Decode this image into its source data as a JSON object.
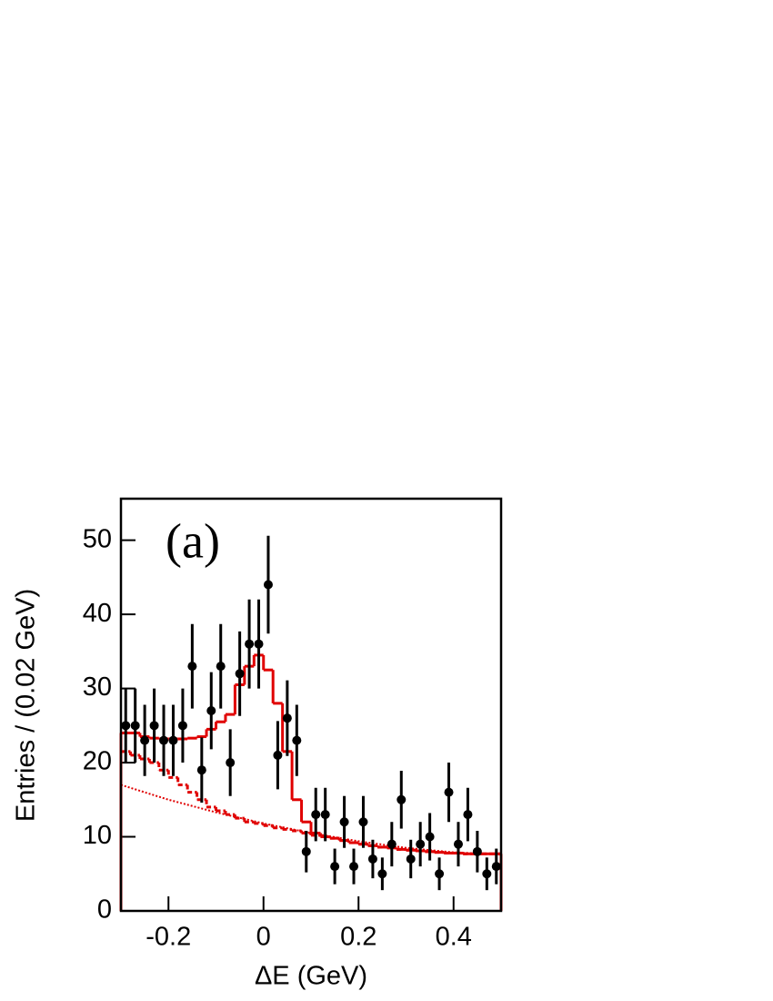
{
  "chart_data": {
    "type": "histogram",
    "x_label": "ΔE (GeV)",
    "y_label": "Entries / (0.02 GeV)",
    "annotation": "(a)",
    "xlim": [
      -0.3,
      0.5
    ],
    "ylim": [
      0,
      55.6
    ],
    "xticks": [
      -0.2,
      0,
      0.2,
      0.4
    ],
    "yticks": [
      0,
      10,
      20,
      30,
      40,
      50
    ],
    "bins": [
      -0.3,
      -0.28,
      -0.26,
      -0.24,
      -0.22,
      -0.2,
      -0.18,
      -0.16,
      -0.14,
      -0.12,
      -0.1,
      -0.08,
      -0.06,
      -0.04,
      -0.02,
      0,
      0.02,
      0.04,
      0.06,
      0.08,
      0.1,
      0.12,
      0.14,
      0.16,
      0.18,
      0.2,
      0.22,
      0.24,
      0.26,
      0.28,
      0.3,
      0.32,
      0.34,
      0.36,
      0.38,
      0.4,
      0.42,
      0.44,
      0.46,
      0.48,
      0.5
    ],
    "points": {
      "color": "#000000",
      "x": [
        -0.29,
        -0.27,
        -0.25,
        -0.23,
        -0.21,
        -0.19,
        -0.17,
        -0.15,
        -0.13,
        -0.11,
        -0.09,
        -0.07,
        -0.05,
        -0.03,
        -0.01,
        0.01,
        0.03,
        0.05,
        0.07,
        0.09,
        0.11,
        0.13,
        0.15,
        0.17,
        0.19,
        0.21,
        0.23,
        0.25,
        0.27,
        0.29,
        0.31,
        0.33,
        0.35,
        0.37,
        0.39,
        0.41,
        0.43,
        0.45,
        0.47,
        0.49
      ],
      "values": [
        25,
        25,
        23,
        25,
        23,
        23,
        25,
        33,
        19,
        27,
        33,
        20,
        32,
        36,
        36,
        44,
        21,
        26,
        23,
        8,
        13,
        13,
        6,
        12,
        6,
        12,
        7,
        5,
        9,
        15,
        7,
        9,
        10,
        5,
        16,
        9,
        13,
        8,
        5,
        6
      ],
      "errors": [
        5,
        5,
        4.8,
        5,
        4.8,
        4.8,
        5,
        5.7,
        4.4,
        5.2,
        5.7,
        4.5,
        5.7,
        6,
        6,
        6.6,
        4.6,
        5.1,
        4.8,
        2.8,
        3.6,
        3.6,
        2.4,
        3.5,
        2.4,
        3.5,
        2.6,
        2.2,
        3,
        3.9,
        2.6,
        3,
        3.2,
        2.2,
        4,
        3,
        3.6,
        2.8,
        2.2,
        2.4
      ]
    },
    "fit_total": {
      "color": "#e00000",
      "values": [
        24,
        24,
        23.5,
        23.3,
        23.2,
        23.2,
        23.2,
        23.3,
        23.5,
        24.5,
        25.5,
        26.5,
        30.5,
        33,
        34.5,
        32.5,
        28,
        21.5,
        15,
        12,
        10.5,
        10,
        9.8,
        9.5,
        9.2,
        9,
        8.8,
        8.6,
        8.5,
        8.3,
        8.2,
        8.1,
        8,
        7.9,
        7.8,
        7.8,
        7.7,
        7.7,
        7.7,
        7.7
      ]
    },
    "fit_dashed": {
      "color": "#e00000",
      "values": [
        21.5,
        21,
        20.5,
        20,
        19,
        18,
        17,
        16,
        15,
        14,
        13.5,
        13,
        12.5,
        12,
        11.8,
        11.5,
        11.2,
        11,
        10.8,
        10.5,
        10.2,
        10,
        9.8,
        9.5,
        9.2,
        9,
        8.8,
        8.6,
        8.5,
        8.3,
        8.2,
        8.1,
        8,
        7.9,
        7.8,
        7.8,
        7.7,
        7.7,
        7.7,
        7.7
      ]
    },
    "fit_dotted": {
      "color": "#e00000",
      "x": [
        -0.3,
        -0.2,
        -0.1,
        0,
        0.1,
        0.2,
        0.3,
        0.4,
        0.5
      ],
      "values": [
        17,
        15,
        13.3,
        11.8,
        10.5,
        9.4,
        8.5,
        7.9,
        7.6
      ]
    }
  }
}
